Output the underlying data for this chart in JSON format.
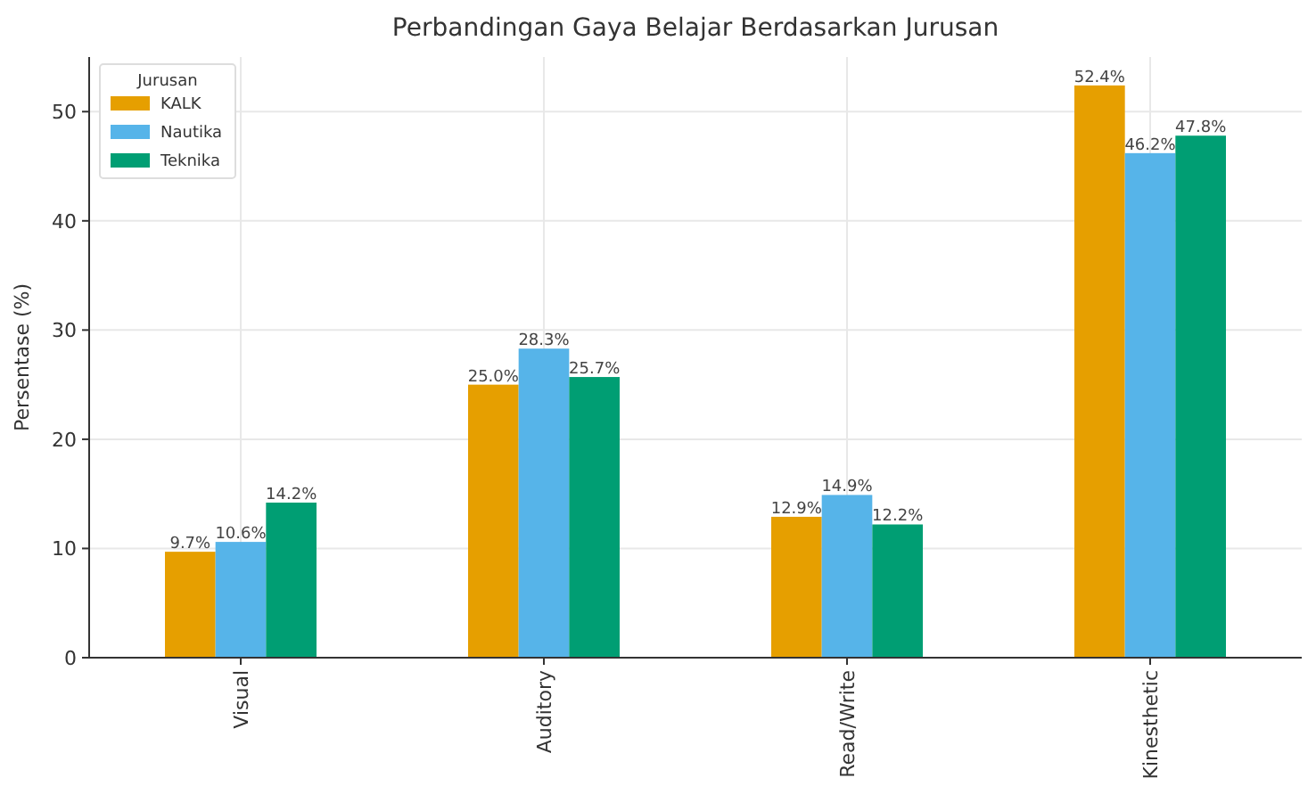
{
  "chart_data": {
    "type": "bar",
    "title": "Perbandingan Gaya Belajar Berdasarkan Jurusan",
    "ylabel": "Persentase (%)",
    "legend_title": "Jurusan",
    "categories": [
      "Visual",
      "Auditory",
      "Read/Write",
      "Kinesthetic"
    ],
    "series": [
      {
        "name": "KALK",
        "color": "#e69f00",
        "values": [
          9.7,
          25.0,
          12.9,
          52.4
        ],
        "value_labels": [
          "9.7%",
          "25.0%",
          "12.9%",
          "52.4%"
        ]
      },
      {
        "name": "Nautika",
        "color": "#56b4e9",
        "values": [
          10.6,
          28.3,
          14.9,
          46.2
        ],
        "value_labels": [
          "10.6%",
          "28.3%",
          "14.9%",
          "46.2%"
        ]
      },
      {
        "name": "Teknika",
        "color": "#009e73",
        "values": [
          14.2,
          25.7,
          12.2,
          47.8
        ],
        "value_labels": [
          "14.2%",
          "25.7%",
          "12.2%",
          "47.8%"
        ]
      }
    ],
    "ylim": [
      0,
      55
    ],
    "yticks": [
      0,
      10,
      20,
      30,
      40,
      50
    ],
    "grid": true,
    "legend": "top left"
  }
}
